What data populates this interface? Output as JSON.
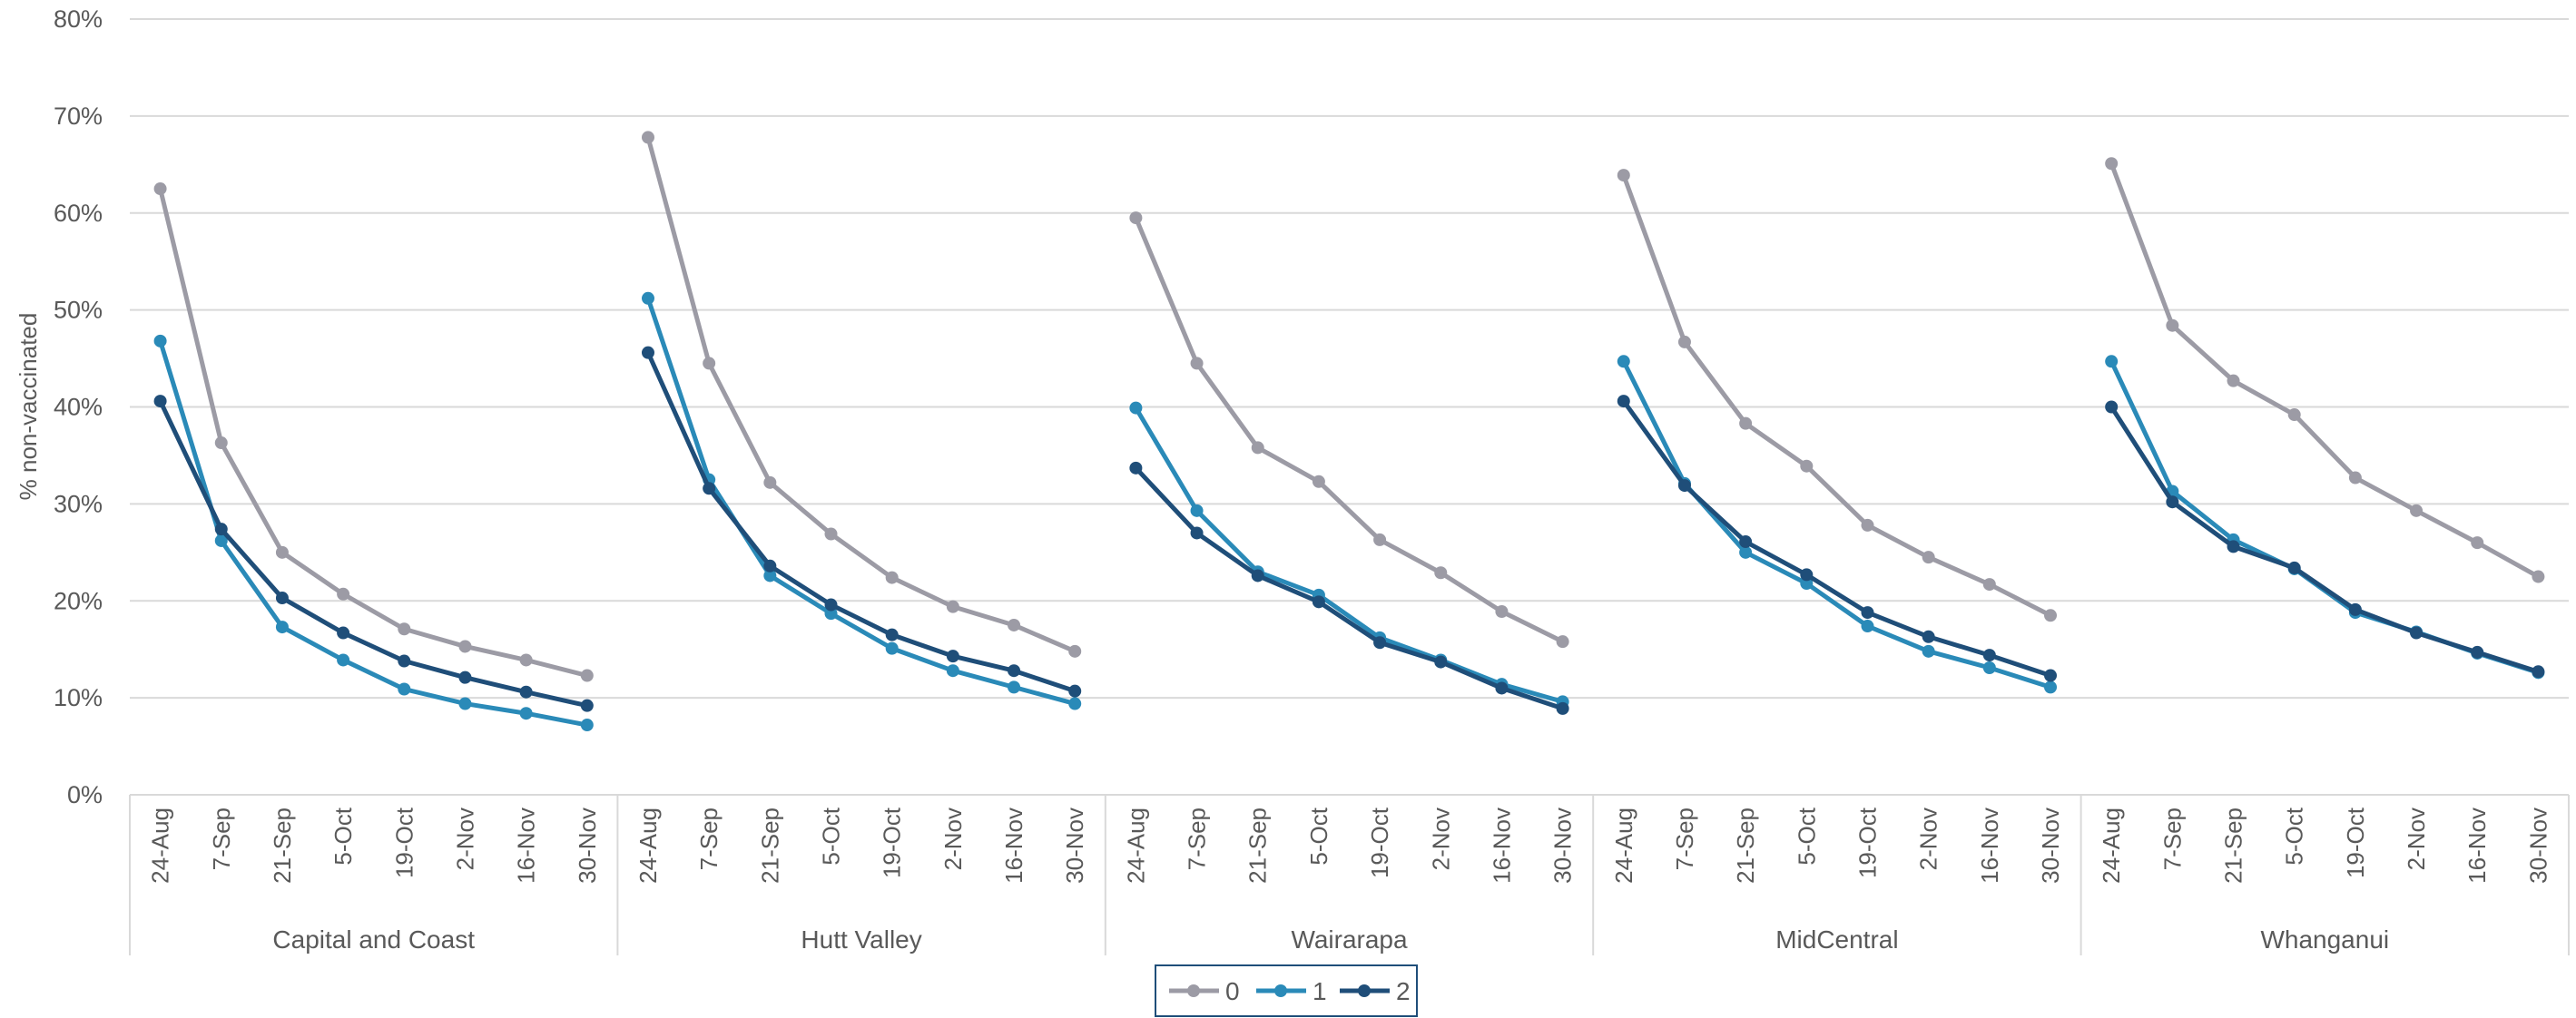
{
  "chart_data": {
    "type": "line",
    "ylabel": "% non-vaccinated",
    "xlabel": "",
    "ylim": [
      0,
      80
    ],
    "yticks": [
      "0%",
      "10%",
      "20%",
      "30%",
      "40%",
      "50%",
      "60%",
      "70%",
      "80%"
    ],
    "categories": [
      "24-Aug",
      "7-Sep",
      "21-Sep",
      "5-Oct",
      "19-Oct",
      "2-Nov",
      "16-Nov",
      "30-Nov"
    ],
    "groups": [
      {
        "name": "Capital and Coast",
        "series": [
          {
            "name": "0",
            "values": [
              62.5,
              36.3,
              25.0,
              20.7,
              17.1,
              15.3,
              13.9,
              12.3
            ]
          },
          {
            "name": "1",
            "values": [
              46.8,
              26.2,
              17.3,
              13.9,
              10.9,
              9.4,
              8.4,
              7.2
            ]
          },
          {
            "name": "2",
            "values": [
              40.6,
              27.4,
              20.3,
              16.7,
              13.8,
              12.1,
              10.6,
              9.2
            ]
          }
        ]
      },
      {
        "name": "Hutt Valley",
        "series": [
          {
            "name": "0",
            "values": [
              67.8,
              44.5,
              32.2,
              26.9,
              22.4,
              19.4,
              17.5,
              14.8
            ]
          },
          {
            "name": "1",
            "values": [
              51.2,
              32.5,
              22.6,
              18.7,
              15.1,
              12.8,
              11.1,
              9.4
            ]
          },
          {
            "name": "2",
            "values": [
              45.6,
              31.6,
              23.6,
              19.6,
              16.5,
              14.3,
              12.8,
              10.7
            ]
          }
        ]
      },
      {
        "name": "Wairarapa",
        "series": [
          {
            "name": "0",
            "values": [
              59.5,
              44.5,
              35.8,
              32.3,
              26.3,
              22.9,
              18.9,
              15.8
            ]
          },
          {
            "name": "1",
            "values": [
              39.9,
              29.3,
              23.0,
              20.6,
              16.2,
              13.9,
              11.4,
              9.6
            ]
          },
          {
            "name": "2",
            "values": [
              33.7,
              27.0,
              22.6,
              19.9,
              15.7,
              13.7,
              11.0,
              8.9
            ]
          }
        ]
      },
      {
        "name": "MidCentral",
        "series": [
          {
            "name": "0",
            "values": [
              63.9,
              46.7,
              38.3,
              33.9,
              27.8,
              24.5,
              21.7,
              18.5
            ]
          },
          {
            "name": "1",
            "values": [
              44.7,
              32.1,
              25.0,
              21.8,
              17.4,
              14.8,
              13.1,
              11.1
            ]
          },
          {
            "name": "2",
            "values": [
              40.6,
              31.9,
              26.1,
              22.7,
              18.8,
              16.3,
              14.4,
              12.3
            ]
          }
        ]
      },
      {
        "name": "Whanganui",
        "series": [
          {
            "name": "0",
            "values": [
              65.1,
              48.4,
              42.7,
              39.2,
              32.7,
              29.3,
              26.0,
              22.5
            ]
          },
          {
            "name": "1",
            "values": [
              44.7,
              31.3,
              26.3,
              23.3,
              18.8,
              16.8,
              14.6,
              12.6
            ]
          },
          {
            "name": "2",
            "values": [
              40.0,
              30.2,
              25.6,
              23.4,
              19.1,
              16.7,
              14.7,
              12.7
            ]
          }
        ]
      }
    ],
    "legend": {
      "position": "bottom",
      "entries": [
        {
          "name": "0",
          "color": "#9c9ba5"
        },
        {
          "name": "1",
          "color": "#2a8ab8"
        },
        {
          "name": "2",
          "color": "#1f4e79"
        }
      ]
    },
    "grid": true
  }
}
